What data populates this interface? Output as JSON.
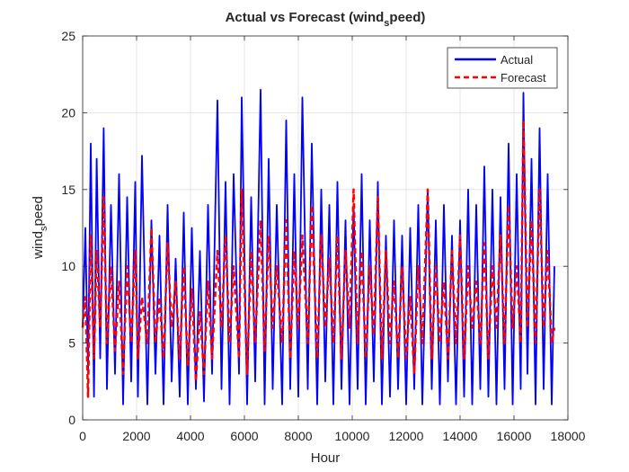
{
  "chart_data": {
    "type": "line",
    "title": {
      "main": "Actual vs Forecast (wind",
      "sub": "s",
      "tail": "peed)"
    },
    "xlabel": "Hour",
    "ylabel": {
      "main": "wind",
      "sub": "s",
      "tail": "peed"
    },
    "xlim": [
      0,
      18000
    ],
    "ylim": [
      0,
      25
    ],
    "xticks": [
      0,
      2000,
      4000,
      6000,
      8000,
      10000,
      12000,
      14000,
      16000,
      18000
    ],
    "yticks": [
      0,
      5,
      10,
      15,
      20,
      25
    ],
    "grid": true,
    "legend_position": "top-right",
    "n_points": 17520,
    "series": [
      {
        "name": "Actual",
        "color": "#0000ff",
        "style": "solid",
        "x": [
          0,
          100,
          200,
          300,
          420,
          520,
          650,
          780,
          900,
          1050,
          1200,
          1350,
          1500,
          1650,
          1800,
          1950,
          2050,
          2200,
          2400,
          2550,
          2700,
          2850,
          3000,
          3150,
          3300,
          3450,
          3600,
          3750,
          3900,
          4050,
          4200,
          4350,
          4500,
          4650,
          4800,
          5000,
          5150,
          5300,
          5450,
          5600,
          5800,
          5900,
          6100,
          6250,
          6400,
          6600,
          6750,
          6900,
          7050,
          7200,
          7400,
          7550,
          7700,
          7850,
          8000,
          8150,
          8350,
          8500,
          8700,
          8850,
          9000,
          9150,
          9300,
          9450,
          9600,
          9750,
          9900,
          10050,
          10200,
          10350,
          10500,
          10650,
          10800,
          10950,
          11100,
          11250,
          11400,
          11550,
          11700,
          11850,
          12000,
          12150,
          12300,
          12450,
          12600,
          12800,
          12950,
          13100,
          13250,
          13400,
          13550,
          13700,
          13850,
          14000,
          14150,
          14300,
          14450,
          14600,
          14750,
          14900,
          15050,
          15200,
          15350,
          15500,
          15650,
          15800,
          15950,
          16100,
          16250,
          16350,
          16500,
          16650,
          16800,
          16950,
          17100,
          17250,
          17400,
          17500
        ],
        "y": [
          6,
          12.5,
          3,
          18,
          1.5,
          17,
          4,
          19,
          2,
          14,
          3,
          16,
          1,
          14.5,
          2.5,
          15.5,
          1.5,
          17.2,
          1,
          13,
          3,
          12,
          1,
          14,
          2.5,
          10.5,
          1.5,
          13.5,
          1,
          12.5,
          2,
          11,
          1.2,
          14,
          3,
          20.8,
          2,
          15.5,
          1,
          16,
          3,
          21,
          1,
          14.5,
          2.5,
          21.5,
          1,
          17,
          2,
          14,
          1,
          19.5,
          2,
          16,
          1.5,
          21,
          2,
          18,
          1,
          15,
          2.5,
          14,
          1,
          15.5,
          2,
          13,
          1,
          14,
          2,
          16,
          1,
          13,
          2.5,
          15.5,
          1,
          12,
          1.5,
          13,
          2,
          12,
          1,
          12.5,
          2,
          14,
          1,
          15,
          2,
          13,
          1,
          14,
          2.5,
          12,
          1,
          13,
          1.5,
          15,
          1,
          14,
          2,
          16.5,
          1.5,
          15,
          1,
          14.5,
          2,
          18,
          1,
          16,
          2,
          21.3,
          3,
          17,
          1,
          19,
          2,
          16,
          1,
          10
        ]
      },
      {
        "name": "Forecast",
        "color": "#ff0000",
        "style": "dashed",
        "x": [
          0,
          100,
          200,
          300,
          420,
          520,
          650,
          780,
          900,
          1050,
          1200,
          1350,
          1500,
          1650,
          1800,
          1950,
          2050,
          2200,
          2400,
          2550,
          2700,
          2850,
          3000,
          3150,
          3300,
          3450,
          3600,
          3750,
          3900,
          4050,
          4200,
          4350,
          4500,
          4650,
          4800,
          5000,
          5150,
          5300,
          5450,
          5600,
          5800,
          5900,
          6100,
          6250,
          6400,
          6600,
          6750,
          6900,
          7050,
          7200,
          7400,
          7550,
          7700,
          7850,
          8000,
          8150,
          8350,
          8500,
          8700,
          8850,
          9000,
          9150,
          9300,
          9450,
          9600,
          9750,
          9900,
          10050,
          10200,
          10350,
          10500,
          10650,
          10800,
          10950,
          11100,
          11250,
          11400,
          11550,
          11700,
          11850,
          12000,
          12150,
          12300,
          12450,
          12600,
          12800,
          12950,
          13100,
          13250,
          13400,
          13550,
          13700,
          13850,
          14000,
          14150,
          14300,
          14450,
          14600,
          14750,
          14900,
          15050,
          15200,
          15350,
          15500,
          15650,
          15800,
          15950,
          16100,
          16250,
          16350,
          16500,
          16650,
          16800,
          16950,
          17100,
          17250,
          17400,
          17500
        ],
        "y": [
          6,
          8,
          1.5,
          12,
          4,
          11,
          6,
          14.5,
          5,
          10,
          4.5,
          9,
          3,
          10,
          5,
          11,
          4,
          8,
          5,
          12.5,
          5,
          8,
          4,
          11.5,
          6,
          9,
          4,
          10,
          3.5,
          8.5,
          2.5,
          7,
          3,
          9,
          4,
          11,
          6,
          12,
          5,
          10,
          4,
          15,
          3,
          11,
          5,
          13,
          4.5,
          12,
          6,
          10,
          5,
          13,
          4,
          11,
          6,
          12,
          5,
          14,
          4,
          12,
          6,
          10.5,
          5,
          12,
          4,
          11,
          6,
          15,
          5,
          11,
          4,
          10,
          5.5,
          14.5,
          4,
          11,
          5,
          9,
          4,
          10,
          4,
          8,
          3,
          10,
          5,
          15,
          4,
          10,
          5,
          9,
          4,
          11,
          5,
          12,
          4,
          10,
          6,
          9,
          5,
          11.5,
          4,
          10,
          6,
          12,
          5,
          14,
          6,
          10,
          5,
          19.5,
          6,
          13,
          5,
          15,
          6,
          11,
          5,
          6
        ]
      }
    ]
  }
}
